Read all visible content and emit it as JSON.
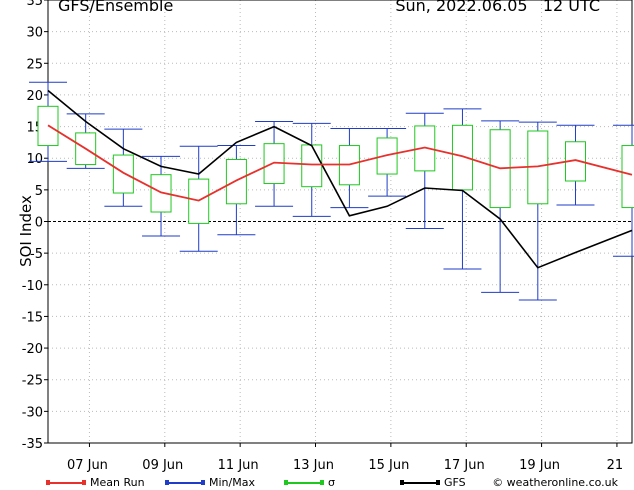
{
  "header": {
    "title": "GFS/Ensemble",
    "date_label": "Sun, 2022.06.05   12 UTC"
  },
  "colors": {
    "mean": "#e8302c",
    "minmax": "#1f3dc8",
    "sigma": "#1fc81f",
    "gfs": "#000000",
    "grid": "#bbbbbb"
  },
  "legend": {
    "mean_label": "Mean Run",
    "minmax_label": "Min/Max",
    "sigma_label": "σ",
    "gfs_label": "GFS",
    "credit": "© weatheronline.co.uk"
  },
  "chart_data": {
    "type": "line",
    "title": "GFS/Ensemble",
    "subtitle": "Sun, 2022.06.05   12 UTC",
    "ylabel": "SOI Index",
    "xlabel": "",
    "ylim": [
      -35,
      35
    ],
    "yticks": [
      -35,
      -30,
      -25,
      -20,
      -15,
      -10,
      -5,
      0,
      5,
      10,
      15,
      20,
      25,
      30,
      35
    ],
    "x_day_range": [
      6,
      21.5
    ],
    "xticks": [
      {
        "label": "07 Jun",
        "day": 7.1
      },
      {
        "label": "09 Jun",
        "day": 9.1
      },
      {
        "label": "11 Jun",
        "day": 11.1
      },
      {
        "label": "13 Jun",
        "day": 13.1
      },
      {
        "label": "15 Jun",
        "day": 15.1
      },
      {
        "label": "17 Jun",
        "day": 17.1
      },
      {
        "label": "19 Jun",
        "day": 19.1
      },
      {
        "label": "21",
        "day": 21.1
      }
    ],
    "grid": true,
    "x": [
      6,
      7,
      8,
      9,
      10,
      11,
      12,
      13,
      14,
      15,
      16,
      17,
      18,
      19,
      20,
      21.5
    ],
    "series": [
      {
        "name": "Mean Run",
        "values": [
          15.2,
          11.5,
          7.7,
          4.6,
          3.3,
          6.5,
          9.3,
          9.0,
          9.0,
          10.5,
          11.7,
          10.3,
          8.4,
          8.7,
          9.7,
          7.4
        ]
      },
      {
        "name": "GFS",
        "values": [
          20.7,
          15.8,
          11.5,
          8.7,
          7.5,
          12.5,
          15.0,
          12.0,
          0.9,
          2.4,
          5.3,
          4.9,
          0.4,
          -7.3,
          -4.9,
          -1.4
        ]
      }
    ],
    "min": [
      9.5,
      8.4,
      2.4,
      -2.3,
      -4.7,
      -2.1,
      2.4,
      0.8,
      2.2,
      4.0,
      -1.1,
      -7.5,
      -11.2,
      -12.4,
      2.6,
      -5.5
    ],
    "max": [
      22.0,
      17.0,
      14.6,
      10.3,
      11.9,
      12.0,
      15.8,
      15.5,
      14.7,
      14.7,
      17.1,
      17.8,
      15.9,
      15.7,
      15.2,
      15.2
    ],
    "sigma_low": [
      12.0,
      9.0,
      4.5,
      1.5,
      -0.3,
      2.8,
      6.0,
      5.5,
      5.8,
      7.5,
      8.0,
      5.0,
      2.2,
      2.8,
      6.4,
      2.2
    ],
    "sigma_high": [
      18.2,
      14.0,
      10.5,
      7.4,
      6.7,
      9.8,
      12.3,
      12.1,
      12.0,
      13.2,
      15.1,
      15.2,
      14.5,
      14.3,
      12.6,
      12.0
    ]
  }
}
